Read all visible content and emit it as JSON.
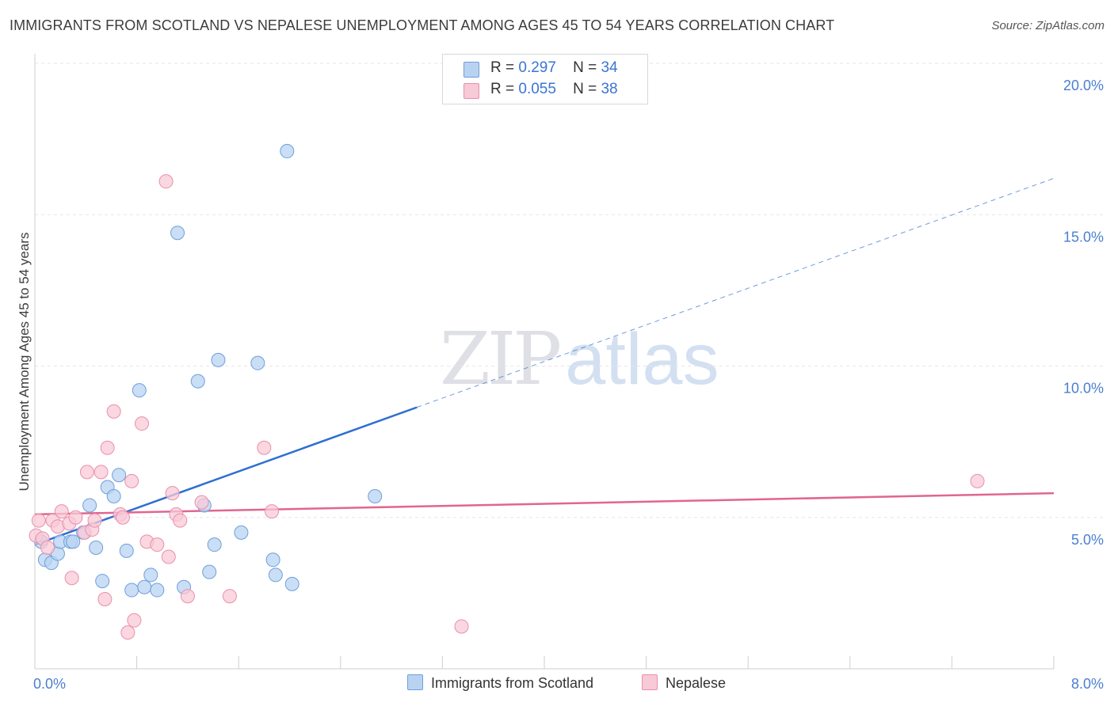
{
  "header": {
    "title": "IMMIGRANTS FROM SCOTLAND VS NEPALESE UNEMPLOYMENT AMONG AGES 45 TO 54 YEARS CORRELATION CHART",
    "source": "Source: ZipAtlas.com"
  },
  "watermark": {
    "zip": "ZIP",
    "atlas": "atlas"
  },
  "legend": {
    "scotland": {
      "r_label": "R =",
      "r_value": "0.297",
      "n_label": "N =",
      "n_value": "34"
    },
    "nepalese": {
      "r_label": "R =",
      "r_value": "0.055",
      "n_label": "N =",
      "n_value": "38"
    }
  },
  "bottom_legend": {
    "scotland": "Immigrants from Scotland",
    "nepalese": "Nepalese"
  },
  "colors": {
    "scotland_fill": "#b8d3f2",
    "scotland_stroke": "#6e9fdb",
    "scotland_line": "#2e6fd1",
    "nepalese_fill": "#f8c9d7",
    "nepalese_stroke": "#e890ab",
    "nepalese_line": "#e0668f",
    "tick": "#4a7fd1",
    "grid": "#e6e6e6"
  },
  "chart_data": {
    "type": "scatter",
    "title": "IMMIGRANTS FROM SCOTLAND VS NEPALESE UNEMPLOYMENT AMONG AGES 45 TO 54 YEARS CORRELATION CHART",
    "xlabel": "",
    "ylabel": "Unemployment Among Ages 45 to 54 years",
    "xlim": [
      0,
      8
    ],
    "ylim": [
      0,
      20
    ],
    "x_tick_labels": [
      "0.0%",
      "8.0%"
    ],
    "y_ticks": [
      5,
      10,
      15,
      20
    ],
    "y_tick_labels": [
      "5.0%",
      "10.0%",
      "15.0%",
      "20.0%"
    ],
    "grid": true,
    "legend_position": "top-center",
    "series": [
      {
        "name": "Immigrants from Scotland",
        "r": 0.297,
        "n": 34,
        "points": [
          [
            0.05,
            4.2
          ],
          [
            0.08,
            3.6
          ],
          [
            0.13,
            3.5
          ],
          [
            0.18,
            3.8
          ],
          [
            0.2,
            4.2
          ],
          [
            0.28,
            4.2
          ],
          [
            0.3,
            4.2
          ],
          [
            0.38,
            4.5
          ],
          [
            0.43,
            5.4
          ],
          [
            0.48,
            4.0
          ],
          [
            0.53,
            2.9
          ],
          [
            0.57,
            6.0
          ],
          [
            0.62,
            5.7
          ],
          [
            0.66,
            6.4
          ],
          [
            0.72,
            3.9
          ],
          [
            0.76,
            2.6
          ],
          [
            0.82,
            9.2
          ],
          [
            0.86,
            2.7
          ],
          [
            0.91,
            3.1
          ],
          [
            0.96,
            2.6
          ],
          [
            1.12,
            14.4
          ],
          [
            1.17,
            2.7
          ],
          [
            1.28,
            9.5
          ],
          [
            1.33,
            5.4
          ],
          [
            1.37,
            3.2
          ],
          [
            1.41,
            4.1
          ],
          [
            1.44,
            10.2
          ],
          [
            1.62,
            4.5
          ],
          [
            1.75,
            10.1
          ],
          [
            1.87,
            3.6
          ],
          [
            1.89,
            3.1
          ],
          [
            1.98,
            17.1
          ],
          [
            2.02,
            2.8
          ],
          [
            2.67,
            5.7
          ]
        ]
      },
      {
        "name": "Nepalese",
        "r": 0.055,
        "n": 38,
        "points": [
          [
            0.01,
            4.4
          ],
          [
            0.03,
            4.9
          ],
          [
            0.06,
            4.3
          ],
          [
            0.1,
            4.0
          ],
          [
            0.14,
            4.9
          ],
          [
            0.18,
            4.7
          ],
          [
            0.21,
            5.2
          ],
          [
            0.27,
            4.8
          ],
          [
            0.29,
            3.0
          ],
          [
            0.32,
            5.0
          ],
          [
            0.39,
            4.5
          ],
          [
            0.41,
            6.5
          ],
          [
            0.45,
            4.6
          ],
          [
            0.47,
            4.9
          ],
          [
            0.52,
            6.5
          ],
          [
            0.55,
            2.3
          ],
          [
            0.57,
            7.3
          ],
          [
            0.62,
            8.5
          ],
          [
            0.67,
            5.1
          ],
          [
            0.69,
            5.0
          ],
          [
            0.73,
            1.2
          ],
          [
            0.76,
            6.2
          ],
          [
            0.78,
            1.6
          ],
          [
            0.84,
            8.1
          ],
          [
            0.88,
            4.2
          ],
          [
            0.96,
            4.1
          ],
          [
            1.03,
            16.1
          ],
          [
            1.05,
            3.7
          ],
          [
            1.08,
            5.8
          ],
          [
            1.11,
            5.1
          ],
          [
            1.14,
            4.9
          ],
          [
            1.2,
            2.4
          ],
          [
            1.31,
            5.5
          ],
          [
            1.53,
            2.4
          ],
          [
            1.8,
            7.3
          ],
          [
            1.86,
            5.2
          ],
          [
            3.35,
            1.4
          ],
          [
            7.4,
            6.2
          ]
        ]
      }
    ],
    "trend_lines": [
      {
        "series": "Immigrants from Scotland",
        "x": [
          0,
          8
        ],
        "y": [
          4.1,
          16.2
        ],
        "solid_until_x": 3.0
      },
      {
        "series": "Nepalese",
        "x": [
          0,
          8
        ],
        "y": [
          5.1,
          5.8
        ]
      }
    ]
  }
}
